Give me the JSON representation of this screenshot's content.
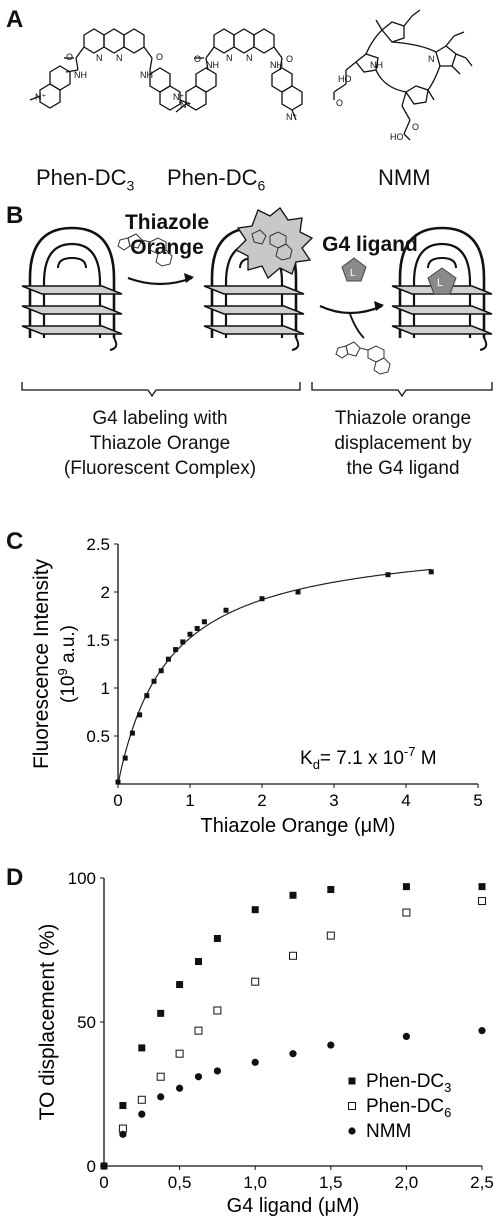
{
  "panels": {
    "a": "A",
    "b": "B",
    "c": "C",
    "d": "D"
  },
  "panel_a": {
    "compounds": [
      {
        "base": "Phen-DC",
        "sub": "3"
      },
      {
        "base": "Phen-DC",
        "sub": "6"
      },
      {
        "base": "NMM",
        "sub": ""
      }
    ],
    "atoms": {
      "nh": "NH",
      "n": "N",
      "o": "O",
      "ho": "HO",
      "oh": "OH",
      "np": "N⁺"
    }
  },
  "panel_b": {
    "step1_title": [
      "Thiazole",
      "Orange"
    ],
    "step2_title": "G4 ligand",
    "ligand_letter": "L",
    "caption_left": [
      "G4 labeling with",
      "Thiazole Orange",
      "(Fluorescent Complex)"
    ],
    "caption_right": [
      "Thiazole orange",
      "displacement by",
      "the G4 ligand"
    ]
  },
  "chart_data": [
    {
      "type": "scatter",
      "panel": "C",
      "x": [
        0,
        0.1,
        0.2,
        0.3,
        0.4,
        0.5,
        0.6,
        0.7,
        0.8,
        0.9,
        1.0,
        1.1,
        1.2,
        1.5,
        2.0,
        2.5,
        3.75,
        4.35
      ],
      "y": [
        0.02,
        0.27,
        0.53,
        0.72,
        0.92,
        1.07,
        1.18,
        1.3,
        1.4,
        1.48,
        1.56,
        1.62,
        1.69,
        1.81,
        1.93,
        2.0,
        2.18,
        2.21
      ],
      "fit": {
        "bmax": 2.6,
        "kd": 0.71
      },
      "ylabel": [
        "Fluorescence Intensity",
        "(10",
        "9",
        " a.u.)"
      ],
      "xlabel": "Thiazole Orange (μM)",
      "xlim": [
        0,
        5
      ],
      "ylim": [
        0,
        2.5
      ],
      "xticks": [
        "0",
        "1",
        "2",
        "3",
        "4",
        "5"
      ],
      "yticks": [
        "0.5",
        "1",
        "1.5",
        "2",
        "2.5"
      ],
      "annotation": {
        "k": "K",
        "sub": "d",
        "text": "= 7.1 x 10",
        "exp": "-7",
        "unit": " M"
      },
      "grid": false
    },
    {
      "type": "scatter",
      "panel": "D",
      "xlabel": "G4 ligand (μM)",
      "ylabel": "TO displacement (%)",
      "xlim": [
        0,
        2.5
      ],
      "ylim": [
        0,
        100
      ],
      "xticks": [
        "0",
        "0,5",
        "1,0",
        "1,5",
        "2,0",
        "2,5"
      ],
      "yticks": [
        "0",
        "50",
        "100"
      ],
      "legend_position": "bottom-right",
      "grid": false,
      "series": [
        {
          "name": "Phen-DC",
          "name_sub": "3",
          "marker": "filled-square",
          "x": [
            0,
            0.125,
            0.25,
            0.375,
            0.5,
            0.625,
            0.75,
            1.0,
            1.25,
            1.5,
            2.0,
            2.5
          ],
          "y": [
            0,
            21,
            41,
            53,
            63,
            71,
            79,
            89,
            94,
            96,
            97,
            97
          ]
        },
        {
          "name": "Phen-DC",
          "name_sub": "6",
          "marker": "open-square",
          "x": [
            0.125,
            0.25,
            0.375,
            0.5,
            0.625,
            0.75,
            1.0,
            1.25,
            1.5,
            2.0,
            2.5
          ],
          "y": [
            13,
            23,
            31,
            39,
            47,
            54,
            64,
            73,
            80,
            88,
            92
          ]
        },
        {
          "name": "NMM",
          "name_sub": "",
          "marker": "filled-circle",
          "x": [
            0.125,
            0.25,
            0.375,
            0.5,
            0.625,
            0.75,
            1.0,
            1.25,
            1.5,
            2.0,
            2.5
          ],
          "y": [
            11,
            18,
            24,
            27,
            31,
            33,
            36,
            39,
            42,
            45,
            47
          ]
        }
      ]
    }
  ],
  "colors": {
    "ink": "#111111",
    "strand": "#1a1a1a",
    "plate": "#cfcfcf",
    "ligand": "#8a8a8a"
  }
}
